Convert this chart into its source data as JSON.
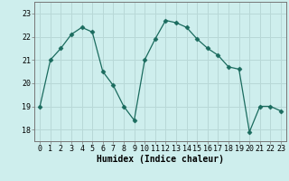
{
  "x": [
    0,
    1,
    2,
    3,
    4,
    5,
    6,
    7,
    8,
    9,
    10,
    11,
    12,
    13,
    14,
    15,
    16,
    17,
    18,
    19,
    20,
    21,
    22,
    23
  ],
  "y": [
    19.0,
    21.0,
    21.5,
    22.1,
    22.4,
    22.2,
    20.5,
    19.9,
    19.0,
    18.4,
    21.0,
    21.9,
    22.7,
    22.6,
    22.4,
    21.9,
    21.5,
    21.2,
    20.7,
    20.6,
    17.9,
    19.0,
    19.0,
    18.8
  ],
  "line_color": "#1a6b5e",
  "marker": "D",
  "marker_size": 2.5,
  "bg_color": "#ceeeed",
  "grid_color": "#b8d8d7",
  "xlabel": "Humidex (Indice chaleur)",
  "xlabel_fontsize": 7,
  "tick_fontsize": 6,
  "ylim": [
    17.5,
    23.5
  ],
  "xlim": [
    -0.5,
    23.5
  ],
  "yticks": [
    18,
    19,
    20,
    21,
    22,
    23
  ],
  "xticks": [
    0,
    1,
    2,
    3,
    4,
    5,
    6,
    7,
    8,
    9,
    10,
    11,
    12,
    13,
    14,
    15,
    16,
    17,
    18,
    19,
    20,
    21,
    22,
    23
  ]
}
